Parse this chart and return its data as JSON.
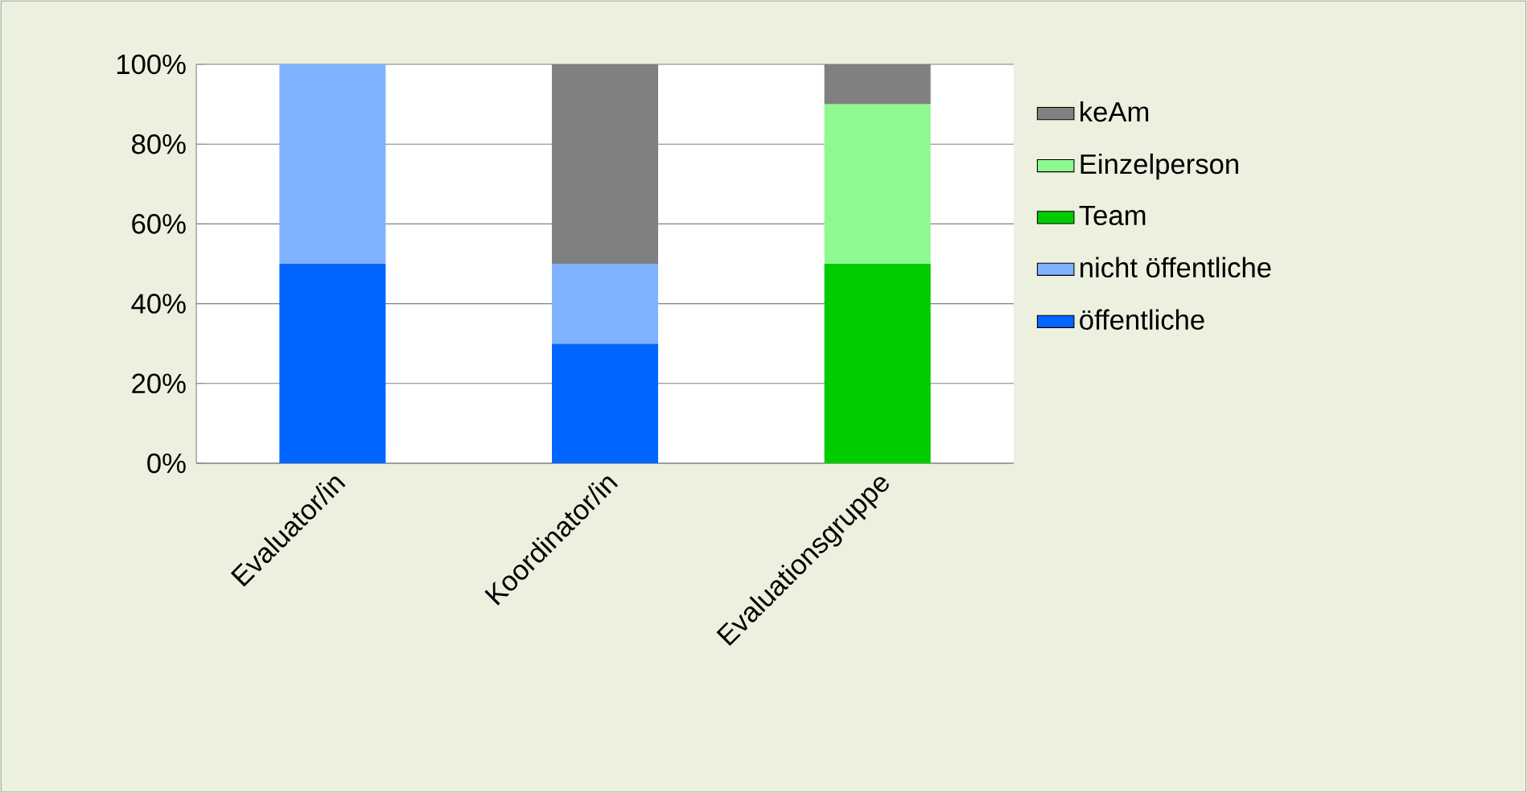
{
  "chart_data": {
    "type": "bar",
    "stacked": true,
    "categories": [
      "Evaluator/in",
      "Koordinator/in",
      "Evaluationsgruppe"
    ],
    "series": [
      {
        "name": "öffentliche",
        "color": "#0066ff",
        "values": [
          50,
          30,
          null
        ]
      },
      {
        "name": "nicht öffentliche",
        "color": "#80b3ff",
        "values": [
          50,
          20,
          null
        ]
      },
      {
        "name": "Team",
        "color": "#00cc00",
        "values": [
          null,
          null,
          50
        ]
      },
      {
        "name": "Einzelperson",
        "color": "#8ef98e",
        "values": [
          null,
          null,
          40
        ]
      },
      {
        "name": "keAm",
        "color": "#808080",
        "values": [
          null,
          50,
          10
        ]
      }
    ],
    "ylim": [
      0,
      100
    ],
    "yticks": [
      {
        "value": 0,
        "label": "0%"
      },
      {
        "value": 20,
        "label": "20%"
      },
      {
        "value": 40,
        "label": "40%"
      },
      {
        "value": 60,
        "label": "60%"
      },
      {
        "value": 80,
        "label": "80%"
      },
      {
        "value": 100,
        "label": "100%"
      }
    ],
    "grid": "y",
    "legend": "right"
  }
}
